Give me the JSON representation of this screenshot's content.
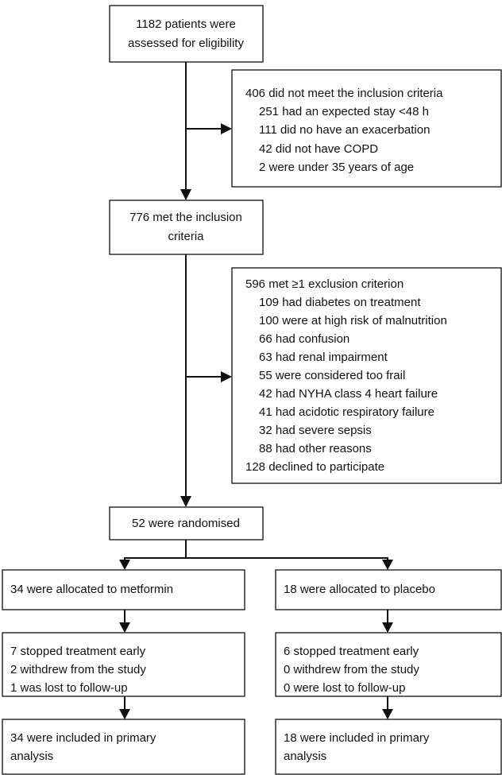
{
  "screening": {
    "lines": [
      "1182 patients were",
      "assessed for eligibility"
    ]
  },
  "not_eligible": {
    "heading": "406 did not meet the inclusion criteria",
    "items": [
      "251 had an expected stay <48 h",
      "111 did no have an exacerbation",
      "42 did not have COPD",
      "2 were under 35 years of age"
    ]
  },
  "eligible": {
    "lines": [
      "776 met the inclusion",
      "criteria"
    ]
  },
  "excluded": {
    "heading": "596 met ≥1 exclusion criterion",
    "items": [
      "109 had diabetes on treatment",
      "100 were at high risk of malnutrition",
      "66 had confusion",
      "63 had renal impairment",
      "55 were considered too frail",
      "42 had NYHA class 4 heart failure",
      "41 had acidotic respiratory failure",
      "32 had severe sepsis",
      "88 had other reasons"
    ],
    "footer": "128 declined to participate"
  },
  "randomised": {
    "text": "52 were randomised"
  },
  "arms": [
    {
      "allocation": "34 were allocated to metformin",
      "follow_up": [
        "7 stopped treatment early",
        "2 withdrew from the study",
        "1 was lost to follow-up"
      ],
      "analysis": [
        "34 were included in primary",
        "analysis"
      ]
    },
    {
      "allocation": "18 were allocated to placebo",
      "follow_up": [
        "6 stopped treatment early",
        "0 withdrew from the study",
        "0 were lost to follow-up"
      ],
      "analysis": [
        "18 were included in primary",
        "analysis"
      ]
    }
  ]
}
